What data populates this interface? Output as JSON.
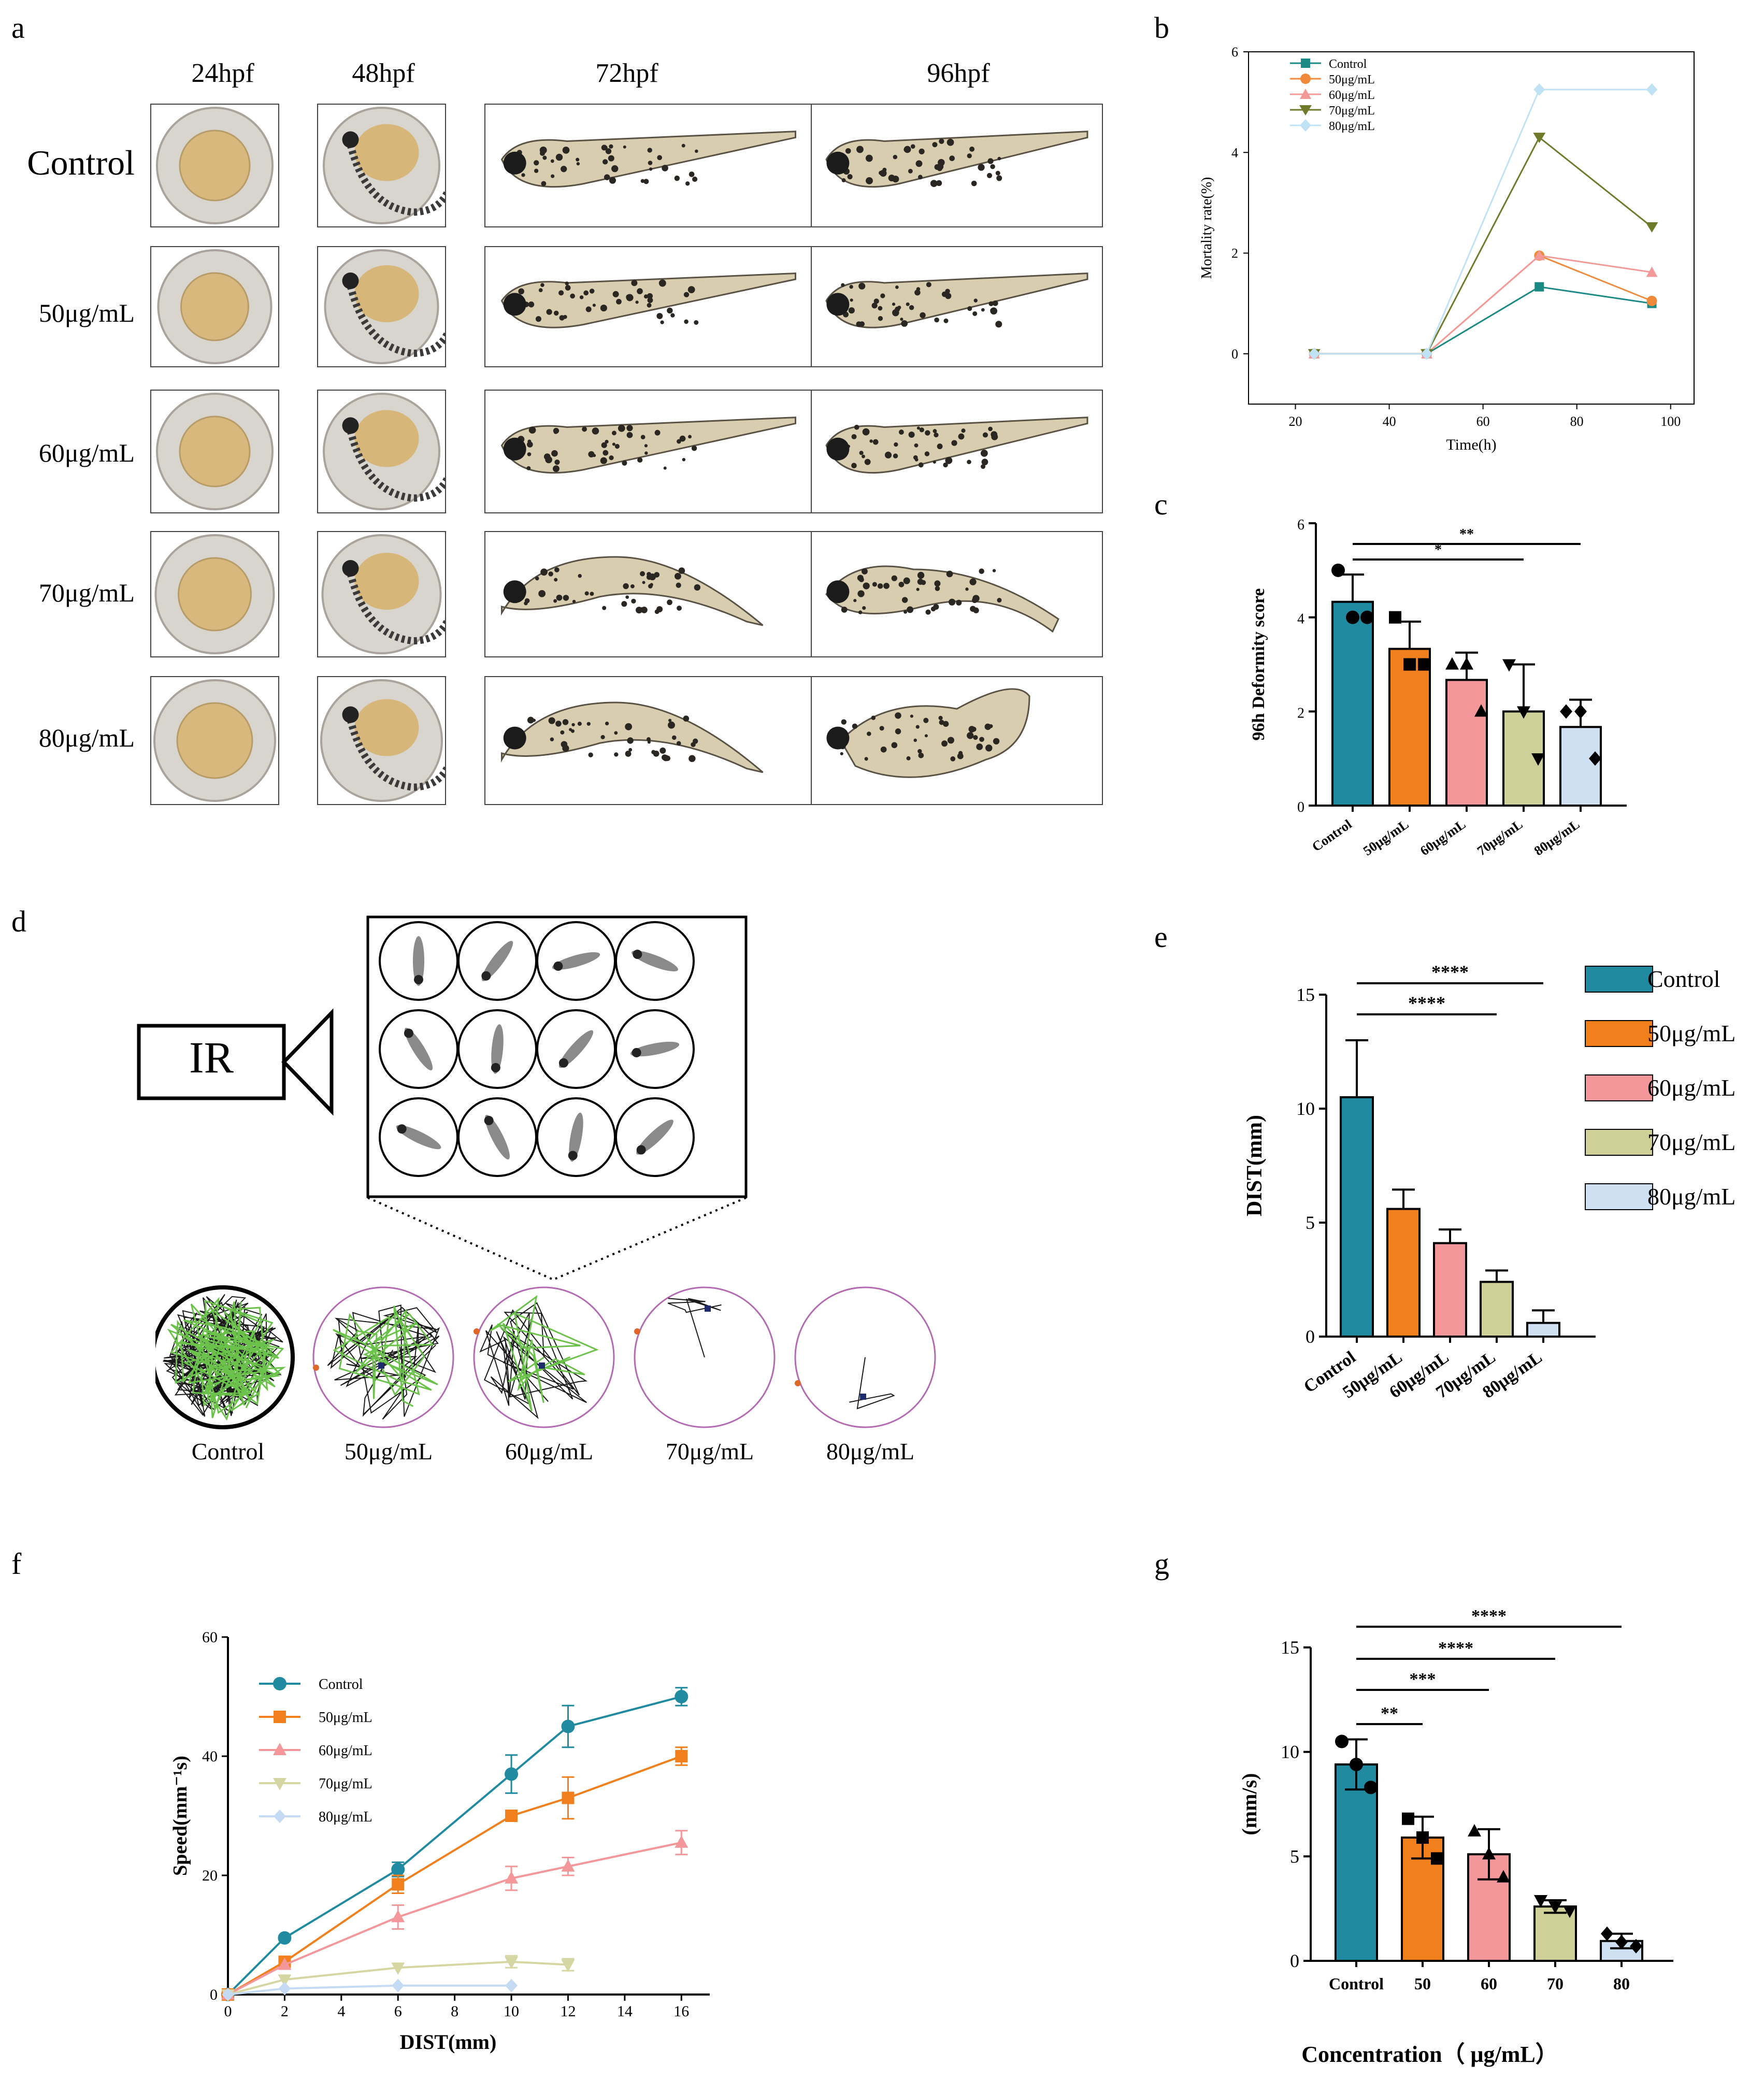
{
  "panels": {
    "a": "a",
    "b": "b",
    "c": "c",
    "d": "d",
    "e": "e",
    "f": "f",
    "g": "g"
  },
  "panel_a": {
    "columns": [
      "24hpf",
      "48hpf",
      "72hpf",
      "96hpf"
    ],
    "rows": [
      "Control",
      "50μg/mL",
      "60μg/mL",
      "70μg/mL",
      "80μg/mL"
    ]
  },
  "panel_d": {
    "camera_label": "IR",
    "track_labels": [
      "Control",
      "50μg/mL",
      "60μg/mL",
      "70μg/mL",
      "80μg/mL"
    ]
  },
  "colors": {
    "control": "#1f8aa0",
    "c50": "#f07f1c",
    "c60": "#f4979a",
    "c70": "#cfcf98",
    "c80": "#cfe0f3",
    "b_control": "#1b8a84",
    "b_50": "#f08a3a",
    "b_60": "#f39a98",
    "b_70": "#6f7a2a",
    "b_80": "#bfe3f5",
    "f_70": "#d6d6a2",
    "f_80": "#c4dbf3"
  },
  "chart_data": [
    {
      "id": "b",
      "type": "line",
      "xlabel": "Time(h)",
      "ylabel": "Mortality rate(%)",
      "xlim": [
        10,
        105
      ],
      "ylim": [
        -1,
        6
      ],
      "xticks": [
        20,
        40,
        60,
        80,
        100
      ],
      "yticks": [
        0,
        2,
        4,
        6
      ],
      "x": [
        24,
        48,
        72,
        96
      ],
      "series": [
        {
          "name": "Control",
          "values": [
            0,
            0,
            1.33,
            1.0
          ]
        },
        {
          "name": "50μg/mL",
          "values": [
            0,
            0,
            1.95,
            1.05
          ]
        },
        {
          "name": "60μg/mL",
          "values": [
            0,
            0,
            1.95,
            1.62
          ]
        },
        {
          "name": "70μg/mL",
          "values": [
            0,
            0,
            4.3,
            2.52
          ]
        },
        {
          "name": "80μg/mL",
          "values": [
            0,
            0,
            5.25,
            5.25
          ]
        }
      ]
    },
    {
      "id": "c",
      "type": "bar",
      "ylabel": "96h Deformity score",
      "ylim": [
        0,
        6
      ],
      "yticks": [
        0,
        2,
        4,
        6
      ],
      "categories": [
        "Control",
        "50μg/mL",
        "60μg/mL",
        "70μg/mL",
        "80μg/mL"
      ],
      "values": [
        4.33,
        3.33,
        2.67,
        2.0,
        1.67
      ],
      "errors": [
        0.58,
        0.58,
        0.58,
        1.0,
        0.58
      ],
      "points": [
        [
          5,
          4,
          4
        ],
        [
          4,
          3,
          3
        ],
        [
          3,
          3,
          2
        ],
        [
          3,
          2,
          1
        ],
        [
          2,
          2,
          1
        ]
      ],
      "significance": [
        {
          "from": 0,
          "to": 4,
          "label": "**"
        },
        {
          "from": 0,
          "to": 3,
          "label": "*"
        }
      ]
    },
    {
      "id": "e",
      "type": "bar",
      "ylabel": "DIST(mm)",
      "ylim": [
        0,
        15
      ],
      "yticks": [
        0,
        5,
        10,
        15
      ],
      "categories": [
        "Control",
        "50μg/mL",
        "60μg/mL",
        "70μg/mL",
        "80μg/mL"
      ],
      "values": [
        10.5,
        5.6,
        4.1,
        2.4,
        0.6
      ],
      "errors": [
        2.5,
        0.85,
        0.6,
        0.5,
        0.55
      ],
      "legend": [
        "Control",
        "50μg/mL",
        "60μg/mL",
        "70μg/mL",
        "80μg/mL"
      ],
      "significance": [
        {
          "from": 0,
          "to": 4,
          "label": "****"
        },
        {
          "from": 0,
          "to": 3,
          "label": "****"
        }
      ]
    },
    {
      "id": "f",
      "type": "line",
      "xlabel": "DIST(mm)",
      "ylabel": "Speed(mm⁻¹s)",
      "xlim": [
        0,
        17
      ],
      "ylim": [
        0,
        60
      ],
      "xticks": [
        0,
        2,
        4,
        6,
        8,
        10,
        12,
        14,
        16
      ],
      "yticks": [
        0,
        20,
        40,
        60
      ],
      "series": [
        {
          "name": "Control",
          "x": [
            0,
            2,
            6,
            10,
            12,
            16
          ],
          "values": [
            0,
            9.5,
            21,
            37,
            45,
            50
          ],
          "errors": [
            0,
            0,
            1.2,
            3.2,
            3.5,
            1.5
          ]
        },
        {
          "name": "50μg/mL",
          "x": [
            0,
            2,
            6,
            10,
            12,
            16
          ],
          "values": [
            0,
            5.5,
            18.5,
            30,
            33,
            40
          ],
          "errors": [
            0,
            0.8,
            1.5,
            0,
            3.5,
            1.5
          ]
        },
        {
          "name": "60μg/mL",
          "x": [
            0,
            2,
            6,
            10,
            12,
            16
          ],
          "values": [
            0,
            5,
            13,
            19.5,
            21.5,
            25.5
          ],
          "errors": [
            0,
            0,
            2,
            2,
            1.5,
            2
          ]
        },
        {
          "name": "70μg/mL",
          "x": [
            0,
            2,
            6,
            10,
            12
          ],
          "values": [
            0,
            2.5,
            4.5,
            5.5,
            5
          ],
          "errors": [
            0,
            0,
            0,
            1,
            1
          ]
        },
        {
          "name": "80μg/mL",
          "x": [
            0,
            2,
            6,
            10
          ],
          "values": [
            0,
            1,
            1.5,
            1.5
          ],
          "errors": [
            0,
            0,
            0,
            0
          ]
        }
      ]
    },
    {
      "id": "g",
      "type": "bar",
      "xlabel": "Concentration（ μg/mL）",
      "ylabel": "(mm/s)",
      "ylim": [
        0,
        15
      ],
      "yticks": [
        0,
        5,
        10,
        15
      ],
      "categories": [
        "Control",
        "50",
        "60",
        "70",
        "80"
      ],
      "values": [
        9.4,
        5.9,
        5.1,
        2.6,
        0.95
      ],
      "errors": [
        1.2,
        1.0,
        1.2,
        0.3,
        0.35
      ],
      "points": [
        [
          10.5,
          9.4,
          8.3
        ],
        [
          6.8,
          5.9,
          4.9
        ],
        [
          6.2,
          5.1,
          4.0
        ],
        [
          2.9,
          2.6,
          2.4
        ],
        [
          1.3,
          0.9,
          0.7
        ]
      ],
      "significance": [
        {
          "from": 0,
          "to": 4,
          "label": "****"
        },
        {
          "from": 0,
          "to": 3,
          "label": "****"
        },
        {
          "from": 0,
          "to": 2,
          "label": "***"
        },
        {
          "from": 0,
          "to": 1,
          "label": "**"
        }
      ]
    }
  ]
}
